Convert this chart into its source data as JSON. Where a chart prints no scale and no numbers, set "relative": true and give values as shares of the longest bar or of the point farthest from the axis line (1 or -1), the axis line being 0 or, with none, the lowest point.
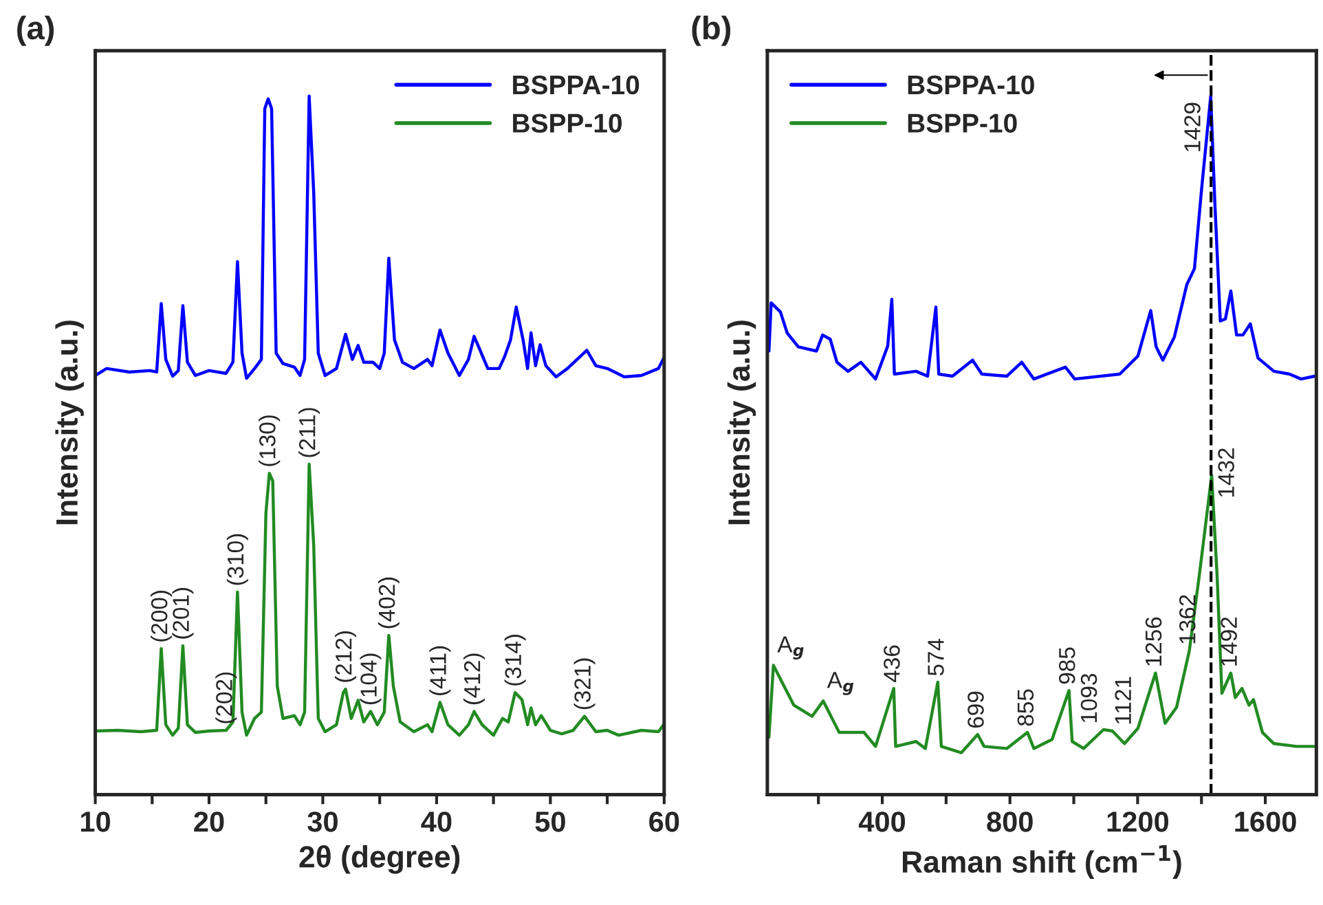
{
  "chart_data": [
    {
      "type": "line",
      "title": "(a)",
      "xlabel": "2θ (degree)",
      "ylabel": "Intensity (a.u.)",
      "relative": true,
      "xlim": [
        10,
        60
      ],
      "xticks": [
        10,
        {
          "value": 15,
          "label": null
        },
        20,
        {
          "value": 25,
          "label": null
        },
        30,
        {
          "value": 35,
          "label": null
        },
        40,
        {
          "value": 45,
          "label": null
        },
        50,
        {
          "value": 55,
          "label": null
        },
        60
      ],
      "legend": "top right",
      "tick_labels": "x",
      "series": [
        {
          "name": "BSPPA-10",
          "color": "#0000ff",
          "x": [
            10,
            11,
            13,
            14.8,
            15.4,
            15.8,
            16.2,
            16.8,
            17.3,
            17.7,
            18.1,
            18.8,
            20,
            21.5,
            22.1,
            22.5,
            22.9,
            23.3,
            24,
            24.6,
            24.9,
            25.2,
            25.5,
            25.9,
            26.5,
            27.5,
            28.0,
            28.4,
            28.8,
            29.2,
            29.6,
            30.2,
            31.2,
            32.0,
            32.6,
            33.1,
            33.6,
            34.4,
            35.0,
            35.4,
            35.8,
            36.3,
            37,
            38,
            39.2,
            39.6,
            40.3,
            41,
            42,
            42.8,
            43.3,
            43.8,
            44.5,
            45.5,
            46,
            46.5,
            47,
            47.6,
            48,
            48.3,
            48.7,
            49.1,
            49.6,
            50.5,
            51.5,
            53.2,
            54,
            55,
            56.5,
            58,
            59.5,
            60
          ],
          "values": [
            0.6,
            0.61,
            0.605,
            0.607,
            0.605,
            0.703,
            0.623,
            0.599,
            0.607,
            0.7,
            0.619,
            0.6,
            0.607,
            0.603,
            0.619,
            0.763,
            0.632,
            0.596,
            0.61,
            0.623,
            0.982,
            0.996,
            0.982,
            0.632,
            0.617,
            0.612,
            0.6,
            0.623,
            1.0,
            0.862,
            0.632,
            0.6,
            0.61,
            0.659,
            0.623,
            0.643,
            0.619,
            0.619,
            0.61,
            0.632,
            0.768,
            0.651,
            0.619,
            0.61,
            0.623,
            0.614,
            0.665,
            0.632,
            0.6,
            0.623,
            0.656,
            0.637,
            0.61,
            0.61,
            0.628,
            0.651,
            0.698,
            0.651,
            0.61,
            0.661,
            0.614,
            0.644,
            0.614,
            0.598,
            0.61,
            0.636,
            0.614,
            0.61,
            0.598,
            0.6,
            0.61,
            0.626
          ]
        },
        {
          "name": "BSPP-10",
          "color": "#228b22",
          "x": [
            10,
            12,
            14,
            15.4,
            15.8,
            16.2,
            16.8,
            17.3,
            17.7,
            18.1,
            18.8,
            20,
            21.5,
            22.1,
            22.5,
            22.9,
            23.3,
            24,
            24.6,
            25.0,
            25.3,
            25.6,
            26.0,
            26.5,
            27.5,
            28.0,
            28.4,
            28.8,
            29.2,
            29.6,
            30.2,
            31.2,
            31.8,
            32.0,
            32.5,
            33.1,
            33.6,
            34.2,
            34.8,
            35.4,
            35.8,
            36.2,
            36.8,
            38,
            39.2,
            39.6,
            40.3,
            41,
            42,
            42.8,
            43.3,
            44,
            45,
            45.8,
            46.3,
            46.9,
            47.5,
            48,
            48.3,
            48.7,
            49.2,
            50,
            51,
            52,
            53.0,
            54,
            55,
            56,
            58,
            59.5,
            60
          ],
          "values": [
            0.091,
            0.092,
            0.09,
            0.092,
            0.209,
            0.1,
            0.085,
            0.095,
            0.213,
            0.1,
            0.089,
            0.091,
            0.092,
            0.104,
            0.29,
            0.118,
            0.085,
            0.109,
            0.118,
            0.403,
            0.46,
            0.449,
            0.155,
            0.109,
            0.113,
            0.1,
            0.118,
            0.473,
            0.357,
            0.109,
            0.09,
            0.1,
            0.146,
            0.151,
            0.109,
            0.135,
            0.104,
            0.119,
            0.1,
            0.118,
            0.228,
            0.155,
            0.104,
            0.09,
            0.1,
            0.09,
            0.132,
            0.1,
            0.085,
            0.1,
            0.119,
            0.1,
            0.085,
            0.109,
            0.104,
            0.146,
            0.136,
            0.1,
            0.124,
            0.1,
            0.113,
            0.092,
            0.087,
            0.092,
            0.112,
            0.09,
            0.092,
            0.085,
            0.092,
            0.09,
            0.101
          ]
        }
      ],
      "annotations": [
        {
          "text": "(200)",
          "x": 15.8,
          "y": 0.209
        },
        {
          "text": "(201)",
          "x": 17.7,
          "y": 0.213
        },
        {
          "text": "(202)",
          "x": 21.5,
          "y": 0.092
        },
        {
          "text": "(310)",
          "x": 22.5,
          "y": 0.29
        },
        {
          "text": "(130)",
          "x": 25.3,
          "y": 0.46
        },
        {
          "text": "(211)",
          "x": 28.8,
          "y": 0.473
        },
        {
          "text": "(212)",
          "x": 32.0,
          "y": 0.151
        },
        {
          "text": "(104)",
          "x": 34.2,
          "y": 0.119
        },
        {
          "text": "(402)",
          "x": 35.8,
          "y": 0.228
        },
        {
          "text": "(411)",
          "x": 40.3,
          "y": 0.132
        },
        {
          "text": "(412)",
          "x": 43.3,
          "y": 0.119
        },
        {
          "text": "(314)",
          "x": 46.9,
          "y": 0.146
        },
        {
          "text": "(321)",
          "x": 53.0,
          "y": 0.112
        }
      ]
    },
    {
      "type": "line",
      "title": "(b)",
      "xlabel": "Raman shift (cm$^{−1}$)",
      "ylabel": "Intensity (a.u.)",
      "relative": true,
      "xlim": [
        40,
        1760
      ],
      "xticks": [
        {
          "value": 200,
          "label": null
        },
        400,
        {
          "value": 600,
          "label": null
        },
        800,
        {
          "value": 1000,
          "label": null
        },
        1200,
        {
          "value": 1400,
          "label": null
        },
        1600
      ],
      "legend": "top left",
      "tick_labels": "x",
      "ref_lines": [
        {
          "axis": "x",
          "value": 1430,
          "line_style": "dashed",
          "color": "#000000"
        }
      ],
      "series": [
        {
          "name": "BSPPA-10",
          "color": "#0000ff",
          "x": [
            45,
            52,
            81,
            102,
            137,
            194,
            213,
            237,
            258,
            293,
            333,
            379,
            417,
            430,
            438,
            506,
            542,
            568,
            577,
            620,
            683,
            712,
            790,
            837,
            875,
            974,
            1003,
            1144,
            1201,
            1241,
            1258,
            1279,
            1315,
            1354,
            1378,
            1400,
            1429,
            1442,
            1459,
            1475,
            1492,
            1510,
            1530,
            1553,
            1577,
            1627,
            1676,
            1712,
            1755
          ],
          "values": [
            0.635,
            0.704,
            0.691,
            0.661,
            0.641,
            0.635,
            0.658,
            0.652,
            0.619,
            0.606,
            0.619,
            0.595,
            0.642,
            0.709,
            0.602,
            0.606,
            0.599,
            0.698,
            0.602,
            0.599,
            0.622,
            0.602,
            0.599,
            0.619,
            0.595,
            0.612,
            0.595,
            0.602,
            0.628,
            0.693,
            0.641,
            0.622,
            0.655,
            0.73,
            0.753,
            0.865,
            1.0,
            0.846,
            0.678,
            0.681,
            0.721,
            0.658,
            0.658,
            0.674,
            0.625,
            0.606,
            0.602,
            0.595,
            0.599
          ]
        },
        {
          "name": "BSPP-10",
          "color": "#228b22",
          "x": [
            45,
            59,
            123,
            180,
            215,
            265,
            343,
            379,
            436,
            442,
            506,
            535,
            574,
            585,
            648,
            699,
            719,
            790,
            855,
            875,
            932,
            985,
            995,
            1031,
            1093,
            1121,
            1159,
            1201,
            1256,
            1286,
            1322,
            1362,
            1393,
            1432,
            1449,
            1464,
            1492,
            1506,
            1527,
            1549,
            1563,
            1591,
            1627,
            1698,
            1755
          ],
          "values": [
            0.082,
            0.185,
            0.128,
            0.112,
            0.134,
            0.089,
            0.089,
            0.069,
            0.152,
            0.069,
            0.076,
            0.066,
            0.161,
            0.069,
            0.06,
            0.086,
            0.069,
            0.066,
            0.089,
            0.066,
            0.079,
            0.149,
            0.076,
            0.066,
            0.093,
            0.091,
            0.073,
            0.095,
            0.174,
            0.102,
            0.125,
            0.206,
            0.313,
            0.457,
            0.313,
            0.145,
            0.174,
            0.139,
            0.152,
            0.128,
            0.136,
            0.089,
            0.073,
            0.069,
            0.069
          ]
        }
      ],
      "annotations": [
        {
          "text": "A$_{g}$",
          "x": 59,
          "y": 0.185
        },
        {
          "text": "A$_{g}$",
          "x": 215,
          "y": 0.134
        },
        {
          "text": "436",
          "x": 436,
          "y": 0.152
        },
        {
          "text": "574",
          "x": 574,
          "y": 0.161
        },
        {
          "text": "699",
          "x": 699,
          "y": 0.086
        },
        {
          "text": "855",
          "x": 855,
          "y": 0.089
        },
        {
          "text": "985",
          "x": 985,
          "y": 0.149
        },
        {
          "text": "1093",
          "x": 1093,
          "y": 0.093
        },
        {
          "text": "1121",
          "x": 1121,
          "y": 0.091
        },
        {
          "text": "1256",
          "x": 1256,
          "y": 0.174
        },
        {
          "text": "1362",
          "x": 1362,
          "y": 0.206
        },
        {
          "text": "1432",
          "x": 1432,
          "y": 0.457
        },
        {
          "text": "1492",
          "x": 1492,
          "y": 0.174
        },
        {
          "text": "1429",
          "x": 1429,
          "y": 1.0
        }
      ]
    }
  ]
}
